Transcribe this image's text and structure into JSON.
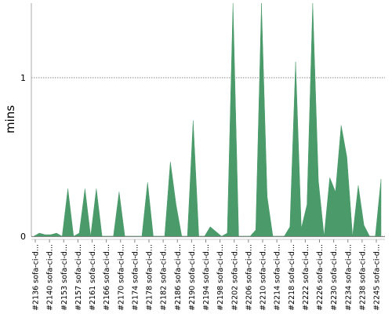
{
  "chart_data": {
    "type": "area",
    "title": "",
    "ylabel": "mins",
    "xlabel": "",
    "ylim": [
      0,
      1.47
    ],
    "yticks": [
      0,
      1
    ],
    "grid": "horizontal-dotted",
    "legend": "none",
    "series_color": "#4a9a6a",
    "x_tick_labels": [
      "#2136 sofa-ci-d...",
      "#2140 sofa-ci-d...",
      "#2153 sofa-ci-d...",
      "#2157 sofa-ci-d...",
      "#2161 sofa-ci-d...",
      "#2166 sofa-ci-d...",
      "#2170 sofa-ci-d...",
      "#2174 sofa-ci-d...",
      "#2178 sofa-ci-d...",
      "#2182 sofa-ci-d...",
      "#2186 sofa-ci-d...",
      "#2190 sofa-ci-d...",
      "#2194 sofa-ci-d...",
      "#2198 sofa-ci-d...",
      "#2202 sofa-ci-d...",
      "#2206 sofa-ci-d...",
      "#2210 sofa-ci-d...",
      "#2214 sofa-ci-d...",
      "#2218 sofa-ci-d...",
      "#2222 sofa-ci-d...",
      "#2226 sofa-ci-d...",
      "#2230 sofa-ci-d...",
      "#2234 sofa-ci-d...",
      "#2238 sofa-ci-d...",
      "#2245 sofa-ci-d..."
    ],
    "values": [
      0,
      0.02,
      0.01,
      0.01,
      0.02,
      0,
      0.3,
      0,
      0.02,
      0.3,
      0,
      0.3,
      0,
      0,
      0,
      0.28,
      0,
      0,
      0,
      0,
      0.34,
      0,
      0,
      0,
      0.47,
      0.2,
      0,
      0,
      0.73,
      0,
      0,
      0.06,
      0.03,
      0,
      0.02,
      1.5,
      0,
      0,
      0,
      0.04,
      1.5,
      0.25,
      0,
      0,
      0,
      0.06,
      1.1,
      0.05,
      0.2,
      1.5,
      0.35,
      0,
      0.37,
      0.28,
      0.7,
      0.5,
      0,
      0.32,
      0.07,
      0,
      0,
      0.36
    ]
  }
}
